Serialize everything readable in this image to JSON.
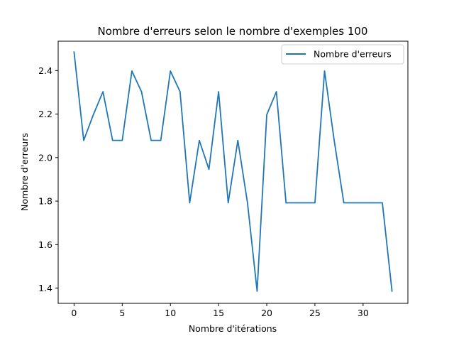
{
  "chart_data": {
    "type": "line",
    "title": "Nombre d'erreurs selon le nombre d'exemples 100",
    "xlabel": "Nombre d'itérations",
    "ylabel": "Nombre d'erreurs",
    "xlim": [
      -1.65,
      34.65
    ],
    "ylim": [
      1.33,
      2.535
    ],
    "xticks": [
      0,
      5,
      10,
      15,
      20,
      25,
      30
    ],
    "yticks": [
      1.4,
      1.6,
      1.8,
      2.0,
      2.2,
      2.4
    ],
    "ytick_labels": [
      "1.4",
      "1.6",
      "1.8",
      "2.0",
      "2.2",
      "2.4"
    ],
    "legend_position": "upper right",
    "grid": false,
    "series": [
      {
        "name": "Nombre d'erreurs",
        "color": "#1f77b4",
        "x": [
          0,
          1,
          2,
          3,
          4,
          5,
          6,
          7,
          8,
          9,
          10,
          11,
          12,
          13,
          14,
          15,
          16,
          17,
          18,
          19,
          20,
          21,
          22,
          23,
          24,
          25,
          26,
          27,
          28,
          29,
          30,
          31,
          32,
          33
        ],
        "y": [
          2.485,
          2.079,
          2.197,
          2.303,
          2.079,
          2.079,
          2.398,
          2.303,
          2.079,
          2.079,
          2.398,
          2.303,
          1.792,
          2.079,
          1.946,
          2.303,
          1.792,
          2.079,
          1.792,
          1.386,
          2.197,
          2.303,
          1.792,
          1.792,
          1.792,
          1.792,
          2.398,
          2.079,
          1.792,
          1.792,
          1.792,
          1.792,
          1.792,
          1.386
        ]
      }
    ]
  }
}
